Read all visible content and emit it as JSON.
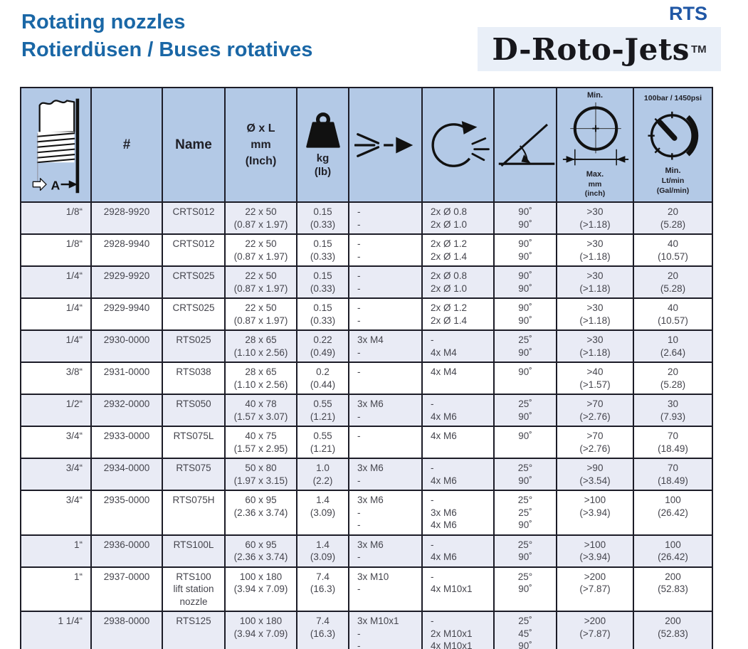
{
  "header": {
    "title_line1": "Rotating nozzles",
    "title_line2": "Rotierdüsen / Buses rotatives",
    "series": "RTS",
    "brand": "D-Roto-Jets",
    "trademark": "TM"
  },
  "colors": {
    "accent_blue": "#1a67a6",
    "rts_blue": "#2057a5",
    "table_header_bg": "#b3c9e6",
    "row_alt_bg": "#e9ebf5",
    "grid": "#1c1c27",
    "body_text": "#45454d"
  },
  "icons": [
    "thread-size-icon",
    "weight-icon",
    "spray-jet-icon",
    "rotation-icon",
    "spray-angle-icon",
    "min-max-diameter-icon",
    "pressure-gauge-icon"
  ],
  "table": {
    "header": {
      "thread_label": "A",
      "part": "#",
      "name": "Name",
      "dimensions": "Ø x L\nmm\n(Inch)",
      "weight": "kg\n(lb)",
      "min_label": "Min.",
      "max_label": "Max.",
      "max_unit": "mm",
      "max_unit_inch": "(inch)",
      "pressure": "100bar / 1450psi",
      "flow_min": "Min.",
      "flow_unit": "Lt/min",
      "flow_unit_gal": "(Gal/min)"
    },
    "row_keys": [
      "size",
      "part",
      "name",
      "dims",
      "weight",
      "inlets",
      "nozzles",
      "angles",
      "min_diameter",
      "flow"
    ],
    "rows": [
      {
        "size": "1/8“",
        "part": "2928-9920",
        "name": "CRTS012",
        "dims": "22 x 50\n(0.87 x 1.97)",
        "weight": "0.15\n(0.33)",
        "inlets": "-\n-",
        "nozzles": "2x Ø 0.8\n2x Ø 1.0",
        "angles": "90˚\n90˚",
        "min_diameter": ">30\n(>1.18)",
        "flow": "20\n(5.28)"
      },
      {
        "size": "1/8“",
        "part": "2928-9940",
        "name": "CRTS012",
        "dims": "22 x 50\n(0.87 x 1.97)",
        "weight": "0.15\n(0.33)",
        "inlets": "-\n-",
        "nozzles": "2x Ø 1.2\n2x Ø 1.4",
        "angles": "90˚\n90˚",
        "min_diameter": ">30\n(>1.18)",
        "flow": "40\n(10.57)"
      },
      {
        "size": "1/4“",
        "part": "2929-9920",
        "name": "CRTS025",
        "dims": "22 x 50\n(0.87 x 1.97)",
        "weight": "0.15\n(0.33)",
        "inlets": "-\n-",
        "nozzles": "2x Ø 0.8\n2x Ø 1.0",
        "angles": "90˚\n90˚",
        "min_diameter": ">30\n(>1.18)",
        "flow": "20\n(5.28)"
      },
      {
        "size": "1/4“",
        "part": "2929-9940",
        "name": "CRTS025",
        "dims": "22 x 50\n(0.87 x 1.97)",
        "weight": "0.15\n(0.33)",
        "inlets": "-\n-",
        "nozzles": "2x Ø 1.2\n2x Ø 1.4",
        "angles": "90˚\n90˚",
        "min_diameter": ">30\n(>1.18)",
        "flow": "40\n(10.57)"
      },
      {
        "size": "1/4\"",
        "part": "2930-0000",
        "name": "RTS025",
        "dims": "28 x 65\n(1.10 x 2.56)",
        "weight": "0.22\n(0.49)",
        "inlets": "3x M4\n-",
        "nozzles": "-\n4x M4",
        "angles": "25˚\n90˚",
        "min_diameter": ">30\n(>1.18)",
        "flow": "10\n(2.64)"
      },
      {
        "size": "3/8“",
        "part": "2931-0000",
        "name": "RTS038",
        "dims": "28 x 65\n(1.10 x 2.56)",
        "weight": "0.2\n(0.44)",
        "inlets": "-",
        "nozzles": "4x M4",
        "angles": "90˚",
        "min_diameter": ">40\n(>1.57)",
        "flow": "20\n(5.28)"
      },
      {
        "size": "1/2“",
        "part": "2932-0000",
        "name": "RTS050",
        "dims": "40 x 78\n(1.57 x 3.07)",
        "weight": "0.55\n(1.21)",
        "inlets": "3x M6\n-",
        "nozzles": "-\n4x M6",
        "angles": "25˚\n90˚",
        "min_diameter": ">70\n(>2.76)",
        "flow": "30\n(7.93)"
      },
      {
        "size": "3/4“",
        "part": "2933-0000",
        "name": "RTS075L",
        "dims": "40 x 75\n(1.57 x 2.95)",
        "weight": "0.55\n(1.21)",
        "inlets": "-",
        "nozzles": "4x M6",
        "angles": "90˚",
        "min_diameter": ">70\n(>2.76)",
        "flow": "70\n(18.49)"
      },
      {
        "size": "3/4“",
        "part": "2934-0000",
        "name": "RTS075",
        "dims": "50 x 80\n(1.97 x 3.15)",
        "weight": "1.0\n(2.2)",
        "inlets": "3x M6\n-",
        "nozzles": "-\n4x M6",
        "angles": "25°\n90˚",
        "min_diameter": ">90\n(>3.54)",
        "flow": "70\n(18.49)"
      },
      {
        "size": "3/4“",
        "part": "2935-0000",
        "name": "RTS075H",
        "dims": "60 x 95\n(2.36 x 3.74)",
        "weight": "1.4\n(3.09)",
        "inlets": "3x M6\n-\n-",
        "nozzles": "-\n3x M6\n4x M6",
        "angles": "25°\n25˚\n90˚",
        "min_diameter": ">100\n(>3.94)",
        "flow": "100\n(26.42)"
      },
      {
        "size": "1“",
        "part": "2936-0000",
        "name": "RTS100L",
        "dims": "60 x 95\n(2.36 x 3.74)",
        "weight": "1.4\n(3.09)",
        "inlets": "3x M6\n-",
        "nozzles": "-\n4x M6",
        "angles": "25°\n90˚",
        "min_diameter": ">100\n(>3.94)",
        "flow": "100\n(26.42)"
      },
      {
        "size": "1“",
        "part": "2937-0000",
        "name": "RTS100\nlift station\nnozzle",
        "dims": "100 x 180\n(3.94 x 7.09)",
        "weight": "7.4\n(16.3)",
        "inlets": "3x M10\n-",
        "nozzles": "-\n4x M10x1",
        "angles": "25°\n90˚",
        "min_diameter": ">200\n(>7.87)",
        "flow": "200\n(52.83)"
      },
      {
        "size": "1 1/4“",
        "part": "2938-0000",
        "name": "RTS125",
        "dims": "100 x 180\n(3.94 x 7.09)",
        "weight": "7.4\n(16.3)",
        "inlets": "3x M10x1\n-\n-",
        "nozzles": "-\n2x M10x1\n4x M10x1",
        "angles": "25˚\n45˚\n90˚",
        "min_diameter": ">200\n(>7.87)",
        "flow": "200\n(52.83)"
      }
    ]
  }
}
